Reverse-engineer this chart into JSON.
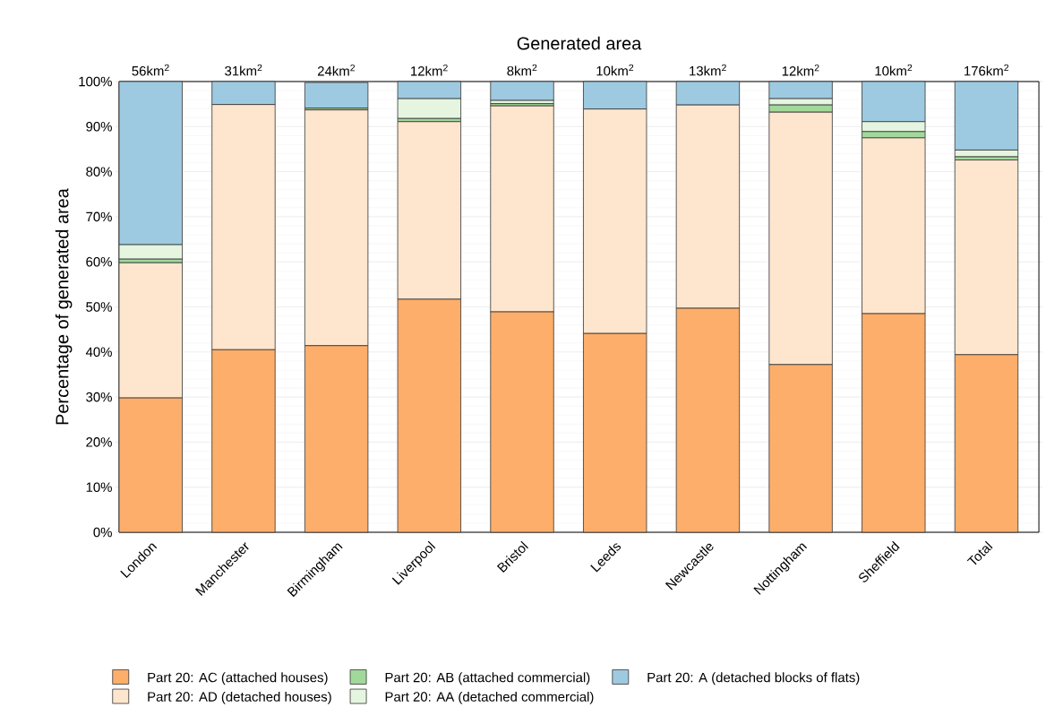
{
  "chart_data": {
    "type": "bar",
    "stacked": true,
    "title": "Generated area",
    "ylabel": "Percentage of generated area",
    "categories": [
      "London",
      "Manchester",
      "Birmingham",
      "Liverpool",
      "Bristol",
      "Leeds",
      "Newcastle",
      "Nottingham",
      "Sheffield",
      "Total"
    ],
    "series": [
      {
        "name": "Part 20: AC (attached houses)",
        "color": "#fdae6b",
        "values": [
          29.8,
          40.5,
          41.4,
          51.7,
          48.9,
          44.1,
          49.7,
          37.2,
          48.5,
          39.4
        ]
      },
      {
        "name": "Part 20: AD (detached houses)",
        "color": "#fee6ce",
        "values": [
          30.0,
          54.4,
          52.3,
          39.4,
          45.7,
          49.8,
          45.1,
          56.0,
          39.0,
          43.2
        ]
      },
      {
        "name": "Part 20: AB (attached commercial)",
        "color": "#a1d99b",
        "values": [
          0.8,
          0,
          0.4,
          0.7,
          0.5,
          0,
          0,
          1.6,
          1.4,
          0.7
        ]
      },
      {
        "name": "Part 20: AA (detached commercial)",
        "color": "#e5f5e0",
        "values": [
          3.2,
          0,
          null,
          4.4,
          0.7,
          0,
          0,
          1.4,
          2.2,
          1.5
        ]
      },
      {
        "name": "Part 20: A (detached blocks of flats)",
        "color": "#9ecae1",
        "values": [
          36.2,
          5.1,
          5.7,
          3.8,
          4.2,
          6.1,
          5.2,
          3.8,
          8.9,
          15.2
        ]
      }
    ],
    "ylim": [
      0,
      100
    ],
    "yticks": [
      {
        "value": 0,
        "label": "0%"
      },
      {
        "value": 10,
        "label": "10%"
      },
      {
        "value": 20,
        "label": "20%"
      },
      {
        "value": 30,
        "label": "30%"
      },
      {
        "value": 40,
        "label": "40%"
      },
      {
        "value": 50,
        "label": "50%"
      },
      {
        "value": 60,
        "label": "60%"
      },
      {
        "value": 70,
        "label": "70%"
      },
      {
        "value": 80,
        "label": "80%"
      },
      {
        "value": 90,
        "label": "90%"
      },
      {
        "value": 100,
        "label": "100%"
      }
    ],
    "grid": "y",
    "legend": "bottom",
    "annotations": [
      {
        "text": "56km$^{2}$",
        "x": "London",
        "y": 100
      },
      {
        "text": "31km$^{2}$",
        "x": "Manchester",
        "y": 100
      },
      {
        "text": "24km$^{2}$",
        "x": "Birmingham",
        "y": 100
      },
      {
        "text": "12km$^{2}$",
        "x": "Liverpool",
        "y": 100
      },
      {
        "text": "8km$^{2}$",
        "x": "Bristol",
        "y": 100
      },
      {
        "text": "10km$^{2}$",
        "x": "Leeds",
        "y": 100
      },
      {
        "text": "13km$^{2}$",
        "x": "Newcastle",
        "y": 100
      },
      {
        "text": "12km$^{2}$",
        "x": "Nottingham",
        "y": 100
      },
      {
        "text": "10km$^{2}$",
        "x": "Sheffield",
        "y": 100
      },
      {
        "text": "176km$^{2}$",
        "x": "Total",
        "y": 100
      }
    ]
  }
}
